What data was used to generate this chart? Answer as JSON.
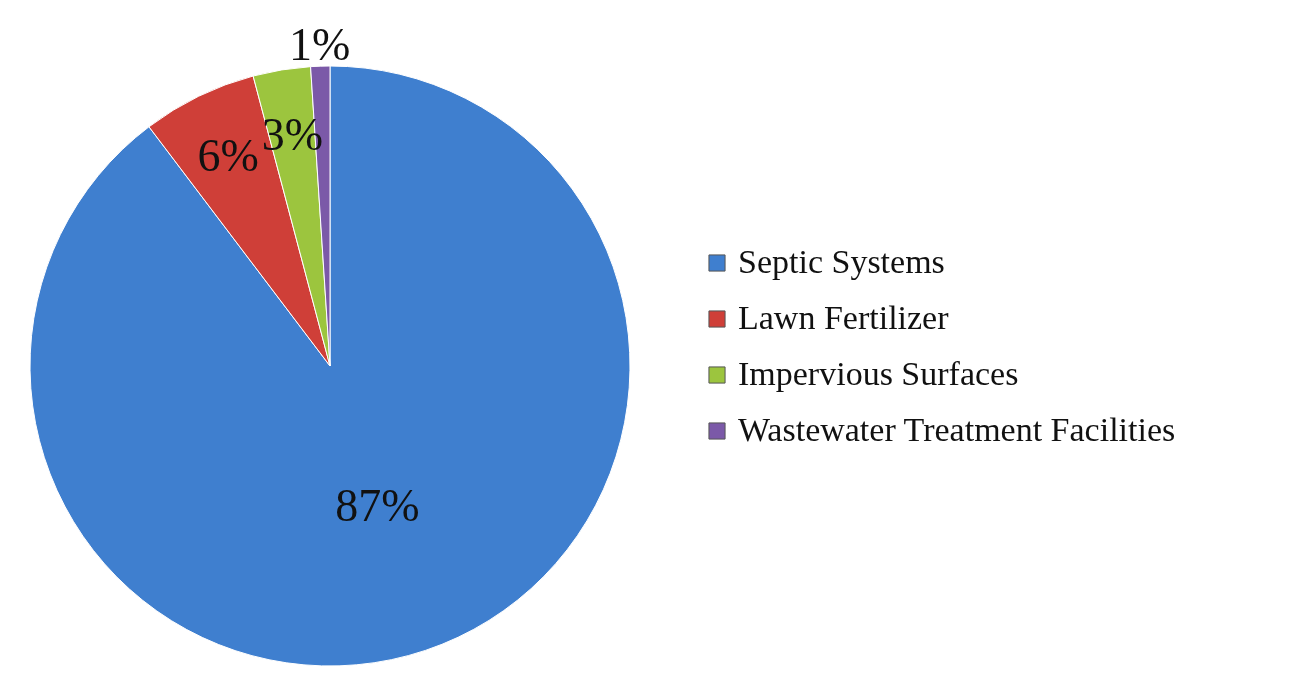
{
  "chart_data": {
    "type": "pie",
    "categories": [
      "Septic Systems",
      "Lawn Fertilizer",
      "Impervious Surfaces",
      "Wastewater Treatment Facilities"
    ],
    "values": [
      87,
      6,
      3,
      1
    ],
    "colors": [
      "#3f7fcf",
      "#cf3f38",
      "#9cc53e",
      "#7b59a8"
    ],
    "value_labels": [
      "87%",
      "6%",
      "3%",
      "1%"
    ],
    "legend": "right"
  }
}
